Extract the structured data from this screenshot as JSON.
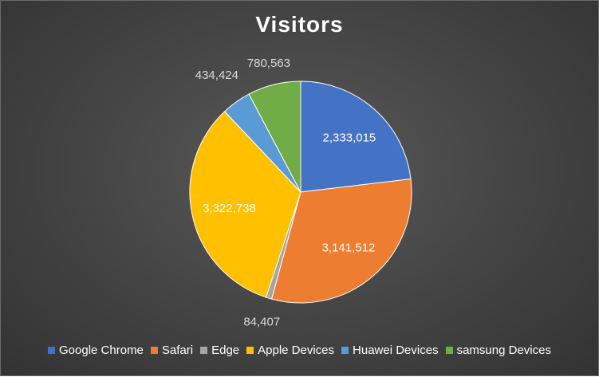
{
  "chart_data": {
    "type": "pie",
    "title": "Visitors",
    "categories": [
      "Google Chrome",
      "Safari",
      "Edge",
      "Apple Devices",
      "Huawei Devices",
      "samsung Devices"
    ],
    "values": [
      2333015,
      3141512,
      84407,
      3322738,
      434424,
      780563
    ],
    "value_labels": [
      "2,333,015",
      "3,141,512",
      "84,407",
      "3,322,738",
      "434,424",
      "780,563"
    ],
    "colors": [
      "#4472C4",
      "#ED7D31",
      "#A5A5A5",
      "#FFC000",
      "#5B9BD5",
      "#70AD47"
    ],
    "legend_position": "bottom",
    "label_colors": [
      "#ffffff",
      "#ffffff",
      "#d9d9d9",
      "#ffffff",
      "#d9d9d9",
      "#d9d9d9"
    ]
  }
}
